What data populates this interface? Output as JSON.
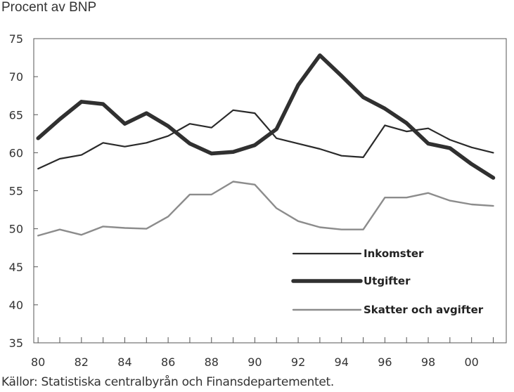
{
  "unit_label": "Procent av BNP",
  "source": "Källor: Statistiska centralbyrån och Finansdepartementet.",
  "chart_data": {
    "type": "line",
    "title": "",
    "xlabel": "",
    "ylabel": "Procent av BNP",
    "ylim": [
      35,
      75
    ],
    "xlim": [
      1979.8,
      2001.6
    ],
    "grid": false,
    "legend_position": "lower-right",
    "y_ticks": [
      35,
      40,
      45,
      50,
      55,
      60,
      65,
      70,
      75
    ],
    "x_ticks": [
      {
        "value": 1980,
        "label": "80"
      },
      {
        "value": 1982,
        "label": "82"
      },
      {
        "value": 1984,
        "label": "84"
      },
      {
        "value": 1986,
        "label": "86"
      },
      {
        "value": 1988,
        "label": "88"
      },
      {
        "value": 1990,
        "label": "90"
      },
      {
        "value": 1992,
        "label": "92"
      },
      {
        "value": 1994,
        "label": "94"
      },
      {
        "value": 1996,
        "label": "96"
      },
      {
        "value": 1998,
        "label": "98"
      },
      {
        "value": 2000,
        "label": "00"
      }
    ],
    "x": [
      1980,
      1981,
      1982,
      1983,
      1984,
      1985,
      1986,
      1987,
      1988,
      1989,
      1990,
      1991,
      1992,
      1993,
      1994,
      1995,
      1996,
      1997,
      1998,
      1999,
      2000,
      2001
    ],
    "series": [
      {
        "name": "Inkomster",
        "color": "#2a2a2a",
        "style": "thin",
        "values": [
          57.9,
          59.2,
          59.7,
          61.3,
          60.8,
          61.3,
          62.2,
          63.8,
          63.3,
          65.6,
          65.2,
          61.9,
          61.2,
          60.5,
          59.6,
          59.4,
          63.6,
          62.8,
          63.2,
          61.7,
          60.7,
          60.0
        ]
      },
      {
        "name": "Utgifter",
        "color": "#303030",
        "style": "thick",
        "values": [
          61.9,
          64.4,
          66.7,
          66.4,
          63.8,
          65.2,
          63.5,
          61.2,
          59.9,
          60.1,
          61.0,
          63.1,
          68.9,
          72.8,
          70.1,
          67.3,
          65.8,
          63.9,
          61.2,
          60.6,
          58.5,
          56.7
        ]
      },
      {
        "name": "Skatter och avgifter",
        "color": "#8c8c8c",
        "style": "medium",
        "values": [
          49.1,
          49.9,
          49.2,
          50.3,
          50.1,
          50.0,
          51.6,
          54.5,
          54.5,
          56.2,
          55.8,
          52.7,
          51.0,
          50.2,
          49.9,
          49.9,
          54.1,
          54.1,
          54.7,
          53.7,
          53.2,
          53.0
        ]
      }
    ]
  }
}
